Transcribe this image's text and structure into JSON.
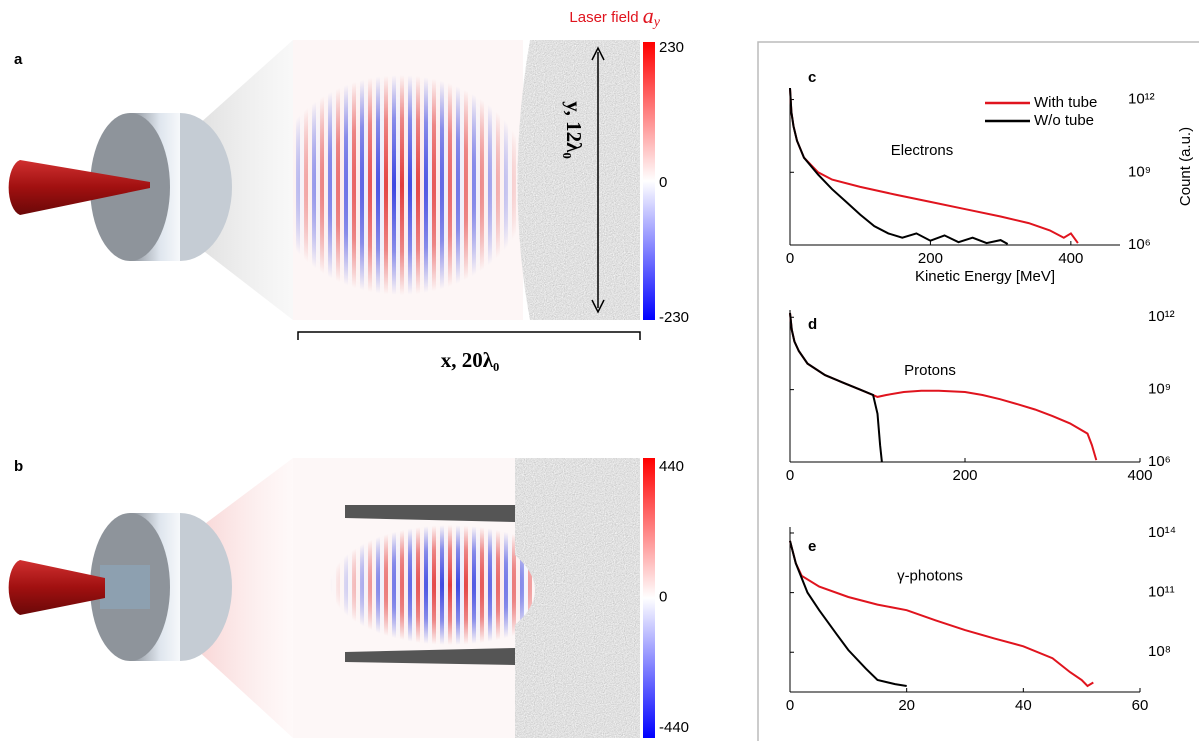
{
  "panels": {
    "a": {
      "letter": "a",
      "field_label": "Laser field",
      "field_symbol": "a",
      "field_subscript": "y",
      "colorbar_ticks": [
        "230",
        "0",
        "-230"
      ],
      "x_label": "x, 20λ₀",
      "y_label": "y, 12λ₀"
    },
    "b": {
      "letter": "b",
      "colorbar_ticks": [
        "440",
        "0",
        "-440"
      ]
    }
  },
  "chart_data": [
    {
      "type": "line",
      "letter": "c",
      "annotation": "Electrons",
      "x_label": "Kinetic Energy [MeV]",
      "y_label": "Count (a.u.)",
      "log_y": true,
      "legend": "upper right",
      "xlim": [
        0,
        470
      ],
      "xticks": [
        0,
        200,
        400
      ],
      "ylim": [
        1000000,
        3000000000000
      ],
      "yticks": [
        {
          "value": 1000000,
          "label": "10⁶"
        },
        {
          "value": 1000000000,
          "label": "10⁹"
        },
        {
          "value": 1000000000000,
          "label": "10¹²"
        }
      ],
      "series": [
        {
          "name": "With tube",
          "color": "#e0141e",
          "x": [
            0,
            2,
            5,
            10,
            20,
            40,
            60,
            100,
            150,
            200,
            250,
            300,
            340,
            370,
            390,
            400,
            410
          ],
          "values": [
            3000000000000,
            300000000000,
            80000000000,
            20000000000,
            4000000000,
            1000000000,
            500000000,
            250000000,
            120000000,
            60000000,
            30000000,
            15000000,
            8000000,
            4000000,
            2000000,
            3000000,
            1200000
          ]
        },
        {
          "name": "W/o tube",
          "color": "#000000",
          "x": [
            0,
            2,
            5,
            10,
            20,
            40,
            60,
            80,
            100,
            120,
            140,
            160,
            180,
            200,
            220,
            240,
            260,
            280,
            300,
            310
          ],
          "values": [
            3000000000000,
            300000000000,
            80000000000,
            20000000000,
            4000000000,
            800000000,
            200000000,
            60000000,
            18000000,
            6000000,
            3000000,
            2000000,
            3000000,
            1500000,
            2500000,
            1300000,
            2000000,
            1200000,
            1600000,
            1100000
          ]
        }
      ]
    },
    {
      "type": "line",
      "letter": "d",
      "annotation": "Protons",
      "log_y": true,
      "xlim": [
        0,
        400
      ],
      "xticks": [
        0,
        200,
        400
      ],
      "ylim": [
        1000000,
        2000000000000
      ],
      "yticks": [
        {
          "value": 1000000,
          "label": "10⁶"
        },
        {
          "value": 1000000000,
          "label": "10⁹"
        },
        {
          "value": 1000000000000,
          "label": "10¹²"
        }
      ],
      "series": [
        {
          "color": "#e0141e",
          "x": [
            0,
            2,
            5,
            10,
            20,
            40,
            60,
            80,
            100,
            110,
            130,
            150,
            170,
            200,
            220,
            240,
            260,
            280,
            300,
            320,
            340,
            345,
            350
          ],
          "values": [
            1500000000000,
            300000000000,
            100000000000,
            40000000000,
            12000000000,
            4000000000,
            2000000000,
            1000000000,
            500000000,
            600000000,
            800000000,
            900000000,
            900000000,
            800000000,
            600000000,
            400000000,
            250000000,
            150000000,
            80000000,
            40000000,
            15000000,
            5000000,
            1200000
          ]
        },
        {
          "color": "#000000",
          "x": [
            0,
            2,
            5,
            10,
            20,
            40,
            60,
            80,
            95,
            100,
            103,
            105
          ],
          "values": [
            1500000000000,
            300000000000,
            100000000000,
            40000000000,
            12000000000,
            4000000000,
            2000000000,
            1000000000,
            600000000,
            100000000,
            5000000,
            1000000
          ]
        }
      ]
    },
    {
      "type": "line",
      "letter": "e",
      "annotation": "γ-photons",
      "log_y": true,
      "xlim": [
        0,
        60
      ],
      "xticks": [
        0,
        20,
        40,
        60
      ],
      "ylim": [
        1000000,
        200000000000000
      ],
      "yticks": [
        {
          "value": 100000000,
          "label": "10⁸"
        },
        {
          "value": 100000000000,
          "label": "10¹¹"
        },
        {
          "value": 100000000000000,
          "label": "10¹⁴"
        }
      ],
      "series": [
        {
          "color": "#e0141e",
          "x": [
            0,
            1,
            2,
            5,
            10,
            15,
            20,
            25,
            30,
            35,
            40,
            45,
            48,
            50,
            51,
            52
          ],
          "values": [
            40000000000000,
            3000000000000,
            700000000000,
            200000000000,
            60000000000,
            25000000000,
            13000000000,
            4000000000,
            1300000000,
            500000000,
            200000000,
            50000000,
            10000000,
            4000000,
            2000000,
            3000000
          ]
        },
        {
          "color": "#000000",
          "x": [
            0,
            1,
            3,
            5,
            8,
            10,
            13,
            15,
            18,
            20
          ],
          "values": [
            40000000000000,
            3000000000000,
            100000000000,
            13000000000,
            800000000,
            130000000,
            15000000,
            4000000,
            2500000,
            2000000
          ]
        }
      ]
    }
  ]
}
